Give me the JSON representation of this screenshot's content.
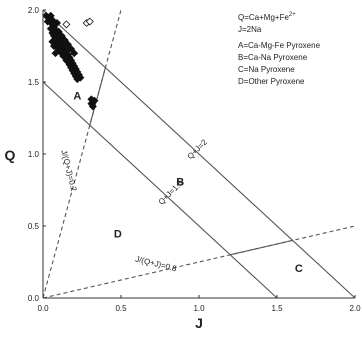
{
  "chart_data": {
    "type": "scatter",
    "xlabel": "J",
    "ylabel": "Q",
    "xlim": [
      0.0,
      2.0
    ],
    "ylim": [
      0.0,
      2.0
    ],
    "x_ticks": [
      "0.0",
      "0.5",
      "1.0",
      "1.5",
      "2.0"
    ],
    "y_ticks": [
      "0.0",
      "0.5",
      "1.0",
      "1.5",
      "2.0"
    ],
    "grid": false,
    "legend": {
      "placement": "top-right",
      "lines": [
        {
          "label": "Q=Ca+Mg+Fe",
          "superscript": "2+"
        },
        {
          "label": "J=2Na",
          "superscript": ""
        },
        {
          "label": "A=Ca-Mg-Fe Pyroxene",
          "superscript": ""
        },
        {
          "label": "B=Ca-Na Pyroxene",
          "superscript": ""
        },
        {
          "label": "C=Na Pyroxene",
          "superscript": ""
        },
        {
          "label": "D=Other Pyroxene",
          "superscript": ""
        }
      ]
    },
    "region_labels": [
      {
        "text": "A",
        "x": 0.22,
        "y": 1.38
      },
      {
        "text": "B",
        "x": 0.88,
        "y": 0.78
      },
      {
        "text": "C",
        "x": 1.64,
        "y": 0.18
      },
      {
        "text": "D",
        "x": 0.48,
        "y": 0.42
      }
    ],
    "boundary_lines": [
      {
        "label": "Q+J=2",
        "x": [
          0.0,
          2.0
        ],
        "y": [
          2.0,
          0.0
        ],
        "style": "solid"
      },
      {
        "label": "Q+J=1.5",
        "x": [
          0.0,
          1.5
        ],
        "y": [
          1.5,
          0.0
        ],
        "style": "solid"
      },
      {
        "label": "J/(Q+J)=0.2",
        "x": [
          0.0,
          0.5
        ],
        "y": [
          0.0,
          2.0
        ],
        "style": "dashed"
      },
      {
        "label": "J/(Q+J)=0.8",
        "x": [
          0.0,
          2.0
        ],
        "y": [
          0.0,
          0.5
        ],
        "style": "dashed"
      },
      {
        "label": "",
        "x": [
          0.3,
          0.4
        ],
        "y": [
          1.2,
          1.6
        ],
        "style": "solid"
      },
      {
        "label": "",
        "x": [
          1.2,
          1.6
        ],
        "y": [
          0.3,
          0.4
        ],
        "style": "solid"
      }
    ],
    "line_labels": [
      {
        "text": "Q+J=2",
        "x": 1.0,
        "y": 1.02,
        "rotate": 45
      },
      {
        "text": "Q+J=1.5",
        "x": 0.83,
        "y": 0.72,
        "rotate": 45
      },
      {
        "text": "J/(Q+J)=0.2",
        "x": 0.15,
        "y": 0.88,
        "rotate": -76
      },
      {
        "text": "J/(Q+J)=0.8",
        "x": 0.72,
        "y": 0.22,
        "rotate": -14
      }
    ],
    "series": [
      {
        "marker": "filled-diamond",
        "points": [
          [
            0.02,
            1.96
          ],
          [
            0.04,
            1.95
          ],
          [
            0.05,
            1.93
          ],
          [
            0.03,
            1.92
          ],
          [
            0.06,
            1.9
          ],
          [
            0.07,
            1.88
          ],
          [
            0.05,
            1.87
          ],
          [
            0.08,
            1.86
          ],
          [
            0.06,
            1.84
          ],
          [
            0.09,
            1.83
          ],
          [
            0.07,
            1.82
          ],
          [
            0.1,
            1.81
          ],
          [
            0.08,
            1.8
          ],
          [
            0.11,
            1.79
          ],
          [
            0.09,
            1.78
          ],
          [
            0.12,
            1.77
          ],
          [
            0.1,
            1.76
          ],
          [
            0.13,
            1.75
          ],
          [
            0.11,
            1.74
          ],
          [
            0.14,
            1.73
          ],
          [
            0.12,
            1.72
          ],
          [
            0.15,
            1.71
          ],
          [
            0.13,
            1.7
          ],
          [
            0.16,
            1.69
          ],
          [
            0.14,
            1.68
          ],
          [
            0.17,
            1.67
          ],
          [
            0.15,
            1.66
          ],
          [
            0.18,
            1.65
          ],
          [
            0.16,
            1.64
          ],
          [
            0.19,
            1.63
          ],
          [
            0.17,
            1.62
          ],
          [
            0.2,
            1.61
          ],
          [
            0.18,
            1.6
          ],
          [
            0.21,
            1.59
          ],
          [
            0.19,
            1.58
          ],
          [
            0.22,
            1.57
          ],
          [
            0.2,
            1.56
          ],
          [
            0.23,
            1.55
          ],
          [
            0.21,
            1.54
          ],
          [
            0.24,
            1.53
          ],
          [
            0.22,
            1.52
          ],
          [
            0.1,
            1.85
          ],
          [
            0.12,
            1.82
          ],
          [
            0.14,
            1.79
          ],
          [
            0.16,
            1.76
          ],
          [
            0.18,
            1.73
          ],
          [
            0.2,
            1.7
          ],
          [
            0.09,
            1.74
          ],
          [
            0.11,
            1.71
          ],
          [
            0.13,
            1.68
          ],
          [
            0.15,
            1.65
          ],
          [
            0.08,
            1.7
          ],
          [
            0.06,
            1.78
          ],
          [
            0.07,
            1.75
          ],
          [
            0.06,
            1.93
          ],
          [
            0.05,
            1.96
          ],
          [
            0.09,
            1.91
          ],
          [
            0.31,
            1.38
          ],
          [
            0.32,
            1.36
          ],
          [
            0.31,
            1.35
          ],
          [
            0.33,
            1.37
          ],
          [
            0.32,
            1.33
          ]
        ]
      },
      {
        "marker": "open-diamond",
        "points": [
          [
            0.15,
            1.9
          ],
          [
            0.28,
            1.91
          ],
          [
            0.3,
            1.92
          ]
        ]
      }
    ]
  }
}
